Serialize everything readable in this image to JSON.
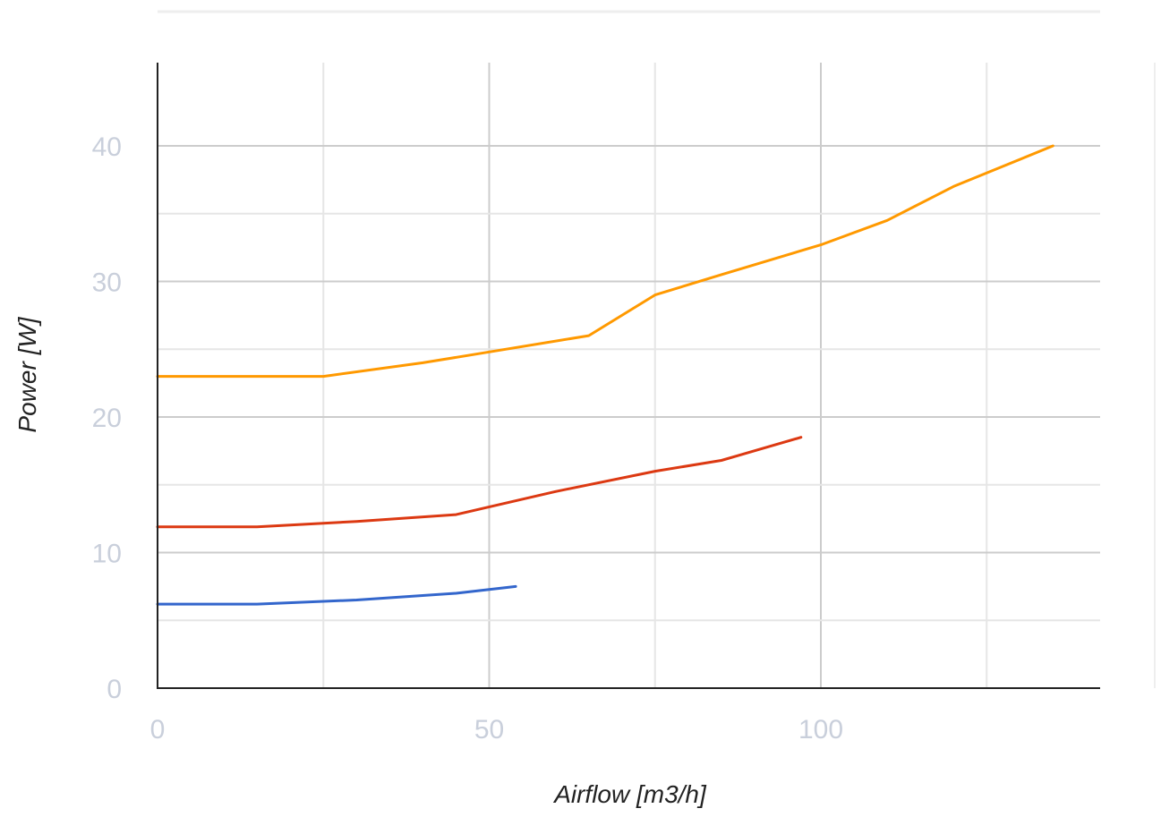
{
  "chart_data": {
    "type": "line",
    "title": "",
    "xlabel": "Airflow [m3/h]",
    "ylabel": "Power [W]",
    "xlim": [
      0,
      142
    ],
    "ylim": [
      0,
      45
    ],
    "x_ticks": [
      0,
      50,
      100
    ],
    "x_tick_labels": [
      "0",
      "50",
      "100"
    ],
    "y_ticks": [
      0,
      10,
      20,
      30,
      40
    ],
    "y_tick_labels": [
      "0",
      "10",
      "20",
      "30",
      "40"
    ],
    "x_gridlines": [
      0,
      25,
      50,
      75,
      100,
      125
    ],
    "y_gridlines": [
      0,
      5,
      10,
      15,
      20,
      25,
      30,
      35,
      40
    ],
    "grid": true,
    "legend": "none",
    "series": [
      {
        "color": "#3366cc",
        "x": [
          0,
          15,
          30,
          45,
          54
        ],
        "y": [
          6.2,
          6.2,
          6.5,
          7.0,
          7.5
        ]
      },
      {
        "color": "#dc3912",
        "x": [
          0,
          15,
          30,
          45,
          60,
          75,
          85,
          97
        ],
        "y": [
          11.9,
          11.9,
          12.3,
          12.8,
          14.5,
          16.0,
          16.8,
          18.5
        ]
      },
      {
        "color": "#ff9900",
        "x": [
          0,
          25,
          40,
          50,
          65,
          75,
          85,
          100,
          110,
          120,
          135
        ],
        "y": [
          23.0,
          23.0,
          24.0,
          24.8,
          26.0,
          29.0,
          30.5,
          32.7,
          34.5,
          37.0,
          40.0
        ]
      }
    ]
  }
}
